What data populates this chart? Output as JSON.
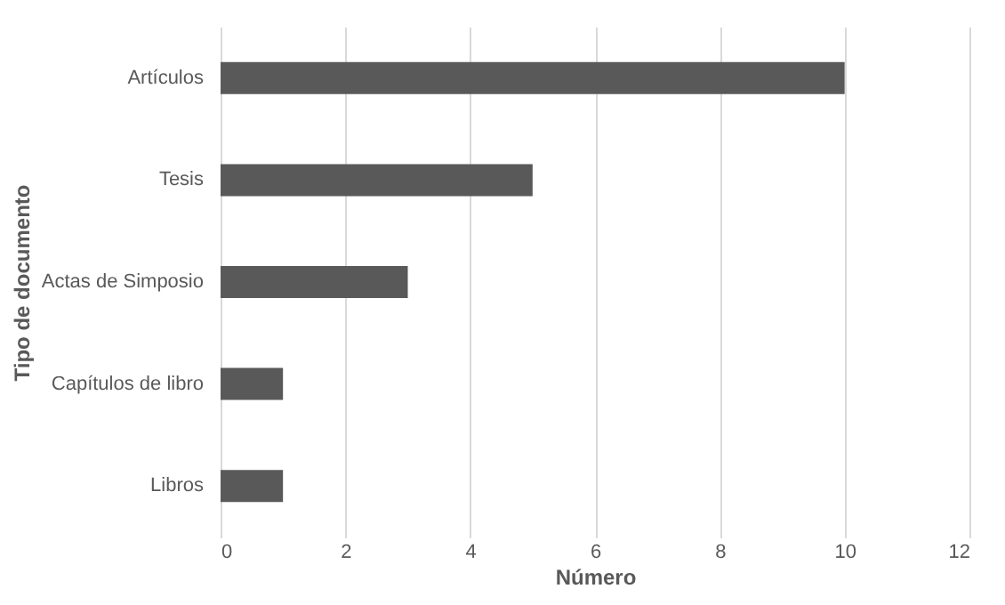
{
  "chart_data": {
    "type": "bar",
    "orientation": "horizontal",
    "categories": [
      "Artículos",
      "Tesis",
      "Actas de Simposio",
      "Capítulos de libro",
      "Libros"
    ],
    "values": [
      10,
      5,
      3,
      1,
      1
    ],
    "color": "#595959",
    "xlim": [
      0,
      12
    ],
    "xticks": [
      0,
      2,
      4,
      6,
      8,
      10,
      12
    ],
    "grid": "x",
    "xlabel": "Número",
    "ylabel": "Tipo de documento"
  }
}
